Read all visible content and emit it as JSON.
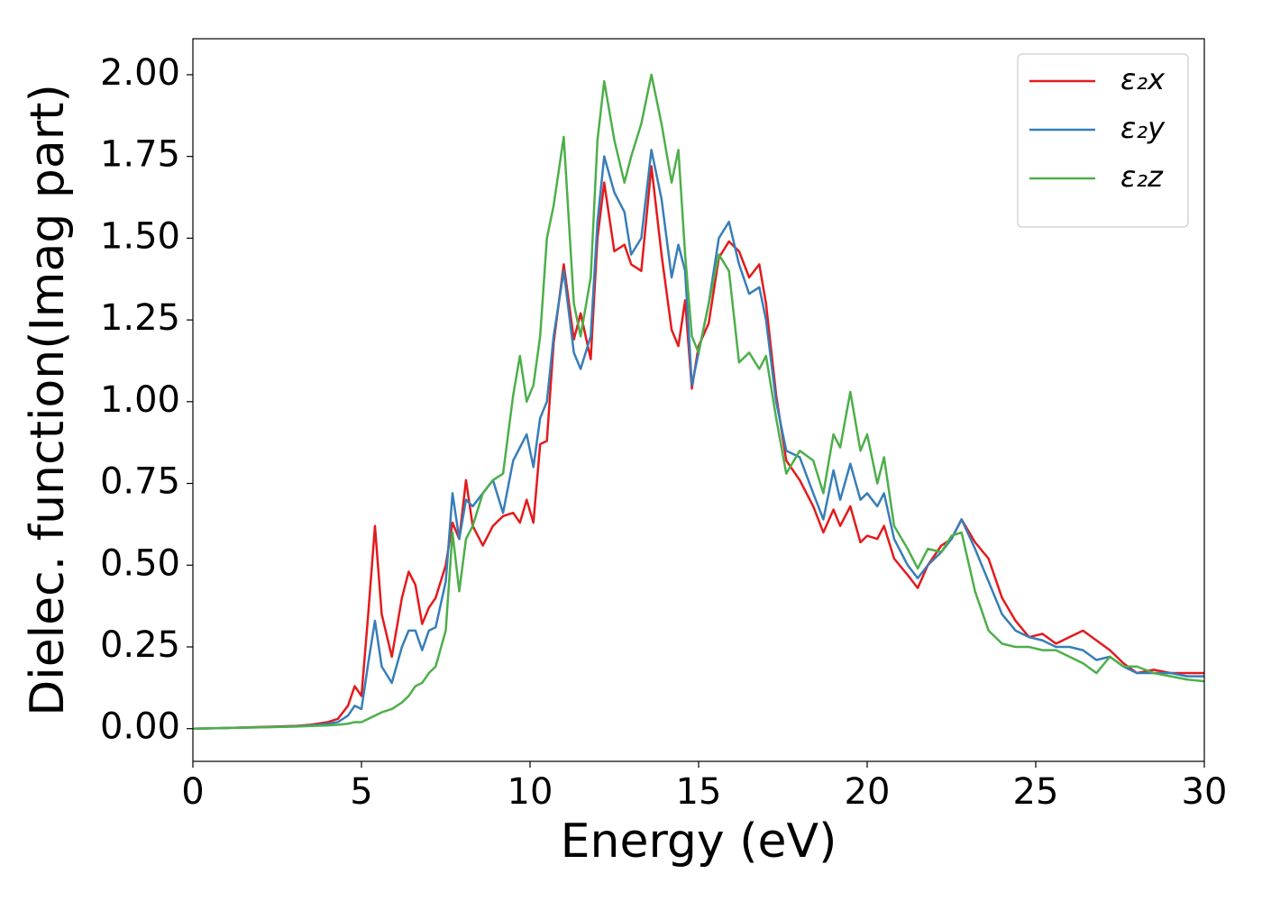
{
  "chart_data": {
    "type": "line",
    "xlabel": "Energy (eV)",
    "ylabel": "Dielec. function(Imag part)",
    "xlim": [
      0,
      30
    ],
    "ylim": [
      -0.1,
      2.11
    ],
    "xticks": [
      0,
      5,
      10,
      15,
      20,
      25,
      30
    ],
    "yticks": [
      {
        "value": 0,
        "label": "0.00"
      },
      0.25,
      {
        "value": 0.5,
        "label": "0.50"
      },
      0.75,
      {
        "value": 1,
        "label": "1.00"
      },
      1.25,
      {
        "value": 1.5,
        "label": "1.50"
      },
      1.75,
      {
        "value": 2,
        "label": "2.00"
      }
    ],
    "legend": "upper right",
    "x": [
      0,
      1,
      2,
      3,
      3.5,
      4,
      4.3,
      4.6,
      4.8,
      5.0,
      5.2,
      5.4,
      5.6,
      5.9,
      6.2,
      6.4,
      6.6,
      6.8,
      7.0,
      7.2,
      7.5,
      7.7,
      7.9,
      8.1,
      8.3,
      8.6,
      8.9,
      9.2,
      9.5,
      9.7,
      9.9,
      10.1,
      10.3,
      10.5,
      10.7,
      11.0,
      11.3,
      11.5,
      11.8,
      12.0,
      12.2,
      12.5,
      12.8,
      13.0,
      13.3,
      13.6,
      13.9,
      14.2,
      14.4,
      14.6,
      14.8,
      15.0,
      15.3,
      15.6,
      15.9,
      16.2,
      16.5,
      16.8,
      17.0,
      17.3,
      17.6,
      18.0,
      18.4,
      18.7,
      19.0,
      19.2,
      19.5,
      19.8,
      20.0,
      20.3,
      20.5,
      20.8,
      21.2,
      21.5,
      21.8,
      22.2,
      22.5,
      22.8,
      23.2,
      23.6,
      24.0,
      24.4,
      24.8,
      25.2,
      25.6,
      26.0,
      26.4,
      26.8,
      27.2,
      27.6,
      28.0,
      28.5,
      29.0,
      29.5,
      30
    ],
    "series": [
      {
        "name": "ε₂x",
        "color": "#e41a1c",
        "values": [
          0,
          0.002,
          0.005,
          0.008,
          0.012,
          0.02,
          0.03,
          0.07,
          0.13,
          0.1,
          0.35,
          0.62,
          0.35,
          0.22,
          0.4,
          0.48,
          0.44,
          0.32,
          0.37,
          0.4,
          0.5,
          0.63,
          0.58,
          0.76,
          0.62,
          0.56,
          0.62,
          0.65,
          0.66,
          0.63,
          0.7,
          0.63,
          0.87,
          0.88,
          1.18,
          1.42,
          1.19,
          1.27,
          1.13,
          1.5,
          1.67,
          1.46,
          1.48,
          1.42,
          1.4,
          1.72,
          1.45,
          1.22,
          1.17,
          1.31,
          1.04,
          1.17,
          1.24,
          1.44,
          1.49,
          1.46,
          1.38,
          1.42,
          1.3,
          1.02,
          0.82,
          0.76,
          0.68,
          0.6,
          0.67,
          0.62,
          0.68,
          0.57,
          0.59,
          0.58,
          0.62,
          0.52,
          0.47,
          0.43,
          0.5,
          0.56,
          0.58,
          0.64,
          0.57,
          0.52,
          0.4,
          0.33,
          0.28,
          0.29,
          0.26,
          0.28,
          0.3,
          0.27,
          0.24,
          0.2,
          0.17,
          0.18,
          0.17,
          0.17,
          0.17
        ]
      },
      {
        "name": "ε₂y",
        "color": "#377eb8",
        "values": [
          0,
          0.002,
          0.004,
          0.007,
          0.01,
          0.015,
          0.02,
          0.04,
          0.07,
          0.06,
          0.2,
          0.33,
          0.19,
          0.14,
          0.25,
          0.3,
          0.3,
          0.24,
          0.3,
          0.31,
          0.45,
          0.72,
          0.58,
          0.7,
          0.68,
          0.72,
          0.76,
          0.66,
          0.82,
          0.86,
          0.9,
          0.8,
          0.95,
          1.0,
          1.2,
          1.4,
          1.15,
          1.1,
          1.2,
          1.55,
          1.75,
          1.64,
          1.58,
          1.45,
          1.5,
          1.77,
          1.62,
          1.38,
          1.48,
          1.4,
          1.05,
          1.15,
          1.3,
          1.5,
          1.55,
          1.42,
          1.33,
          1.35,
          1.25,
          1.0,
          0.85,
          0.83,
          0.72,
          0.64,
          0.79,
          0.7,
          0.81,
          0.7,
          0.72,
          0.68,
          0.72,
          0.58,
          0.5,
          0.46,
          0.5,
          0.54,
          0.58,
          0.64,
          0.55,
          0.45,
          0.35,
          0.3,
          0.28,
          0.27,
          0.25,
          0.25,
          0.24,
          0.21,
          0.22,
          0.19,
          0.17,
          0.17,
          0.17,
          0.16,
          0.16
        ]
      },
      {
        "name": "ε₂z",
        "color": "#4daf4a",
        "values": [
          0,
          0.002,
          0.004,
          0.006,
          0.008,
          0.01,
          0.012,
          0.015,
          0.02,
          0.02,
          0.03,
          0.04,
          0.05,
          0.06,
          0.08,
          0.1,
          0.13,
          0.14,
          0.17,
          0.19,
          0.3,
          0.6,
          0.42,
          0.58,
          0.62,
          0.72,
          0.76,
          0.78,
          1.02,
          1.14,
          1.0,
          1.05,
          1.2,
          1.5,
          1.6,
          1.81,
          1.3,
          1.2,
          1.38,
          1.8,
          1.98,
          1.8,
          1.67,
          1.75,
          1.85,
          2.0,
          1.85,
          1.67,
          1.77,
          1.45,
          1.2,
          1.15,
          1.3,
          1.45,
          1.4,
          1.12,
          1.15,
          1.1,
          1.14,
          0.95,
          0.78,
          0.85,
          0.82,
          0.72,
          0.9,
          0.86,
          1.03,
          0.85,
          0.9,
          0.75,
          0.83,
          0.62,
          0.55,
          0.49,
          0.55,
          0.54,
          0.59,
          0.6,
          0.42,
          0.3,
          0.26,
          0.25,
          0.25,
          0.24,
          0.24,
          0.22,
          0.2,
          0.17,
          0.22,
          0.19,
          0.19,
          0.17,
          0.16,
          0.15,
          0.145
        ]
      }
    ]
  }
}
